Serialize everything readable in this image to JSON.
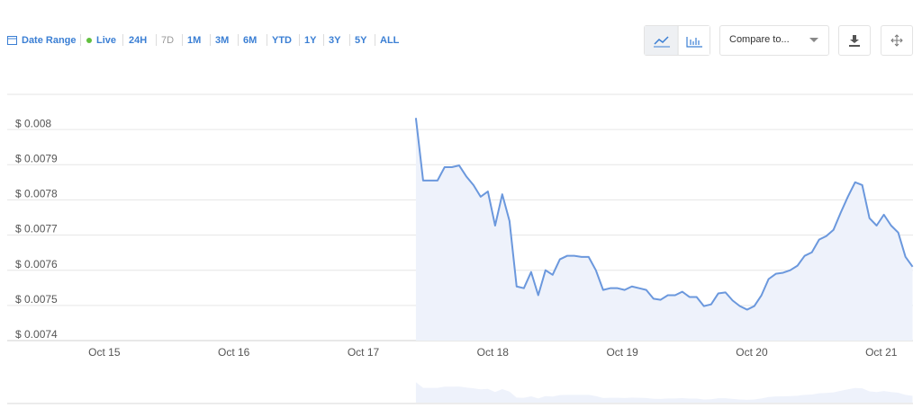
{
  "toolbar": {
    "date_range": "Date Range",
    "live": "Live",
    "ranges": [
      "24H",
      "7D",
      "1M",
      "3M",
      "6M",
      "YTD",
      "1Y",
      "3Y",
      "5Y",
      "ALL"
    ],
    "compare": "Compare to..."
  },
  "chart_data": {
    "type": "line",
    "x": [
      17.406,
      17.462,
      17.517,
      17.573,
      17.628,
      17.684,
      17.74,
      17.795,
      17.851,
      17.906,
      17.962,
      18.018,
      18.073,
      18.129,
      18.184,
      18.24,
      18.296,
      18.351,
      18.407,
      18.462,
      18.518,
      18.574,
      18.629,
      18.685,
      18.74,
      18.796,
      18.852,
      18.907,
      18.963,
      19.018,
      19.074,
      19.13,
      19.185,
      19.241,
      19.296,
      19.352,
      19.408,
      19.463,
      19.519,
      19.574,
      19.63,
      19.686,
      19.741,
      19.797,
      19.852,
      19.908,
      19.964,
      20.019,
      20.075,
      20.13,
      20.186,
      20.242,
      20.297,
      20.353,
      20.408,
      20.464,
      20.52,
      20.575,
      20.631,
      20.686,
      20.742,
      20.798,
      20.853,
      20.909,
      20.964,
      21.02,
      21.076,
      21.131,
      21.187,
      21.242
    ],
    "series": [
      {
        "color": "#6b98dd",
        "values": [
          0.008033,
          0.007855,
          0.007855,
          0.007855,
          0.007893,
          0.007893,
          0.007898,
          0.007867,
          0.007842,
          0.007809,
          0.007824,
          0.007727,
          0.007816,
          0.00774,
          0.007554,
          0.007549,
          0.007595,
          0.007529,
          0.0076,
          0.007587,
          0.007631,
          0.007641,
          0.007641,
          0.007638,
          0.007638,
          0.0076,
          0.007544,
          0.007549,
          0.007549,
          0.007544,
          0.007554,
          0.007549,
          0.007544,
          0.007519,
          0.007516,
          0.007529,
          0.007529,
          0.007539,
          0.007524,
          0.007524,
          0.007498,
          0.007503,
          0.007534,
          0.007537,
          0.007514,
          0.007498,
          0.007488,
          0.007498,
          0.007529,
          0.007575,
          0.00759,
          0.007593,
          0.0076,
          0.007613,
          0.007641,
          0.007651,
          0.007687,
          0.007697,
          0.007715,
          0.007763,
          0.007809,
          0.00785,
          0.007842,
          0.007748,
          0.007727,
          0.007758,
          0.007727,
          0.007707,
          0.007638,
          0.00761
        ]
      }
    ],
    "xlim": [
      14.25,
      21.245
    ],
    "xticks": [
      {
        "value": 15,
        "label": "Oct 15"
      },
      {
        "value": 16,
        "label": "Oct 16"
      },
      {
        "value": 17,
        "label": "Oct 17"
      },
      {
        "value": 18,
        "label": "Oct 18"
      },
      {
        "value": 19,
        "label": "Oct 19"
      },
      {
        "value": 20,
        "label": "Oct 20"
      },
      {
        "value": 21,
        "label": "Oct 21"
      }
    ],
    "ylim": [
      0.0074,
      0.0081
    ],
    "yticks": [
      {
        "value": 0.0074,
        "label": "$ 0.0074"
      },
      {
        "value": 0.0075,
        "label": "$ 0.0075"
      },
      {
        "value": 0.0076,
        "label": "$ 0.0076"
      },
      {
        "value": 0.0077,
        "label": "$ 0.0077"
      },
      {
        "value": 0.0078,
        "label": "$ 0.0078"
      },
      {
        "value": 0.0079,
        "label": "$ 0.0079"
      },
      {
        "value": 0.008,
        "label": "$ 0.008"
      }
    ],
    "grid": true
  }
}
